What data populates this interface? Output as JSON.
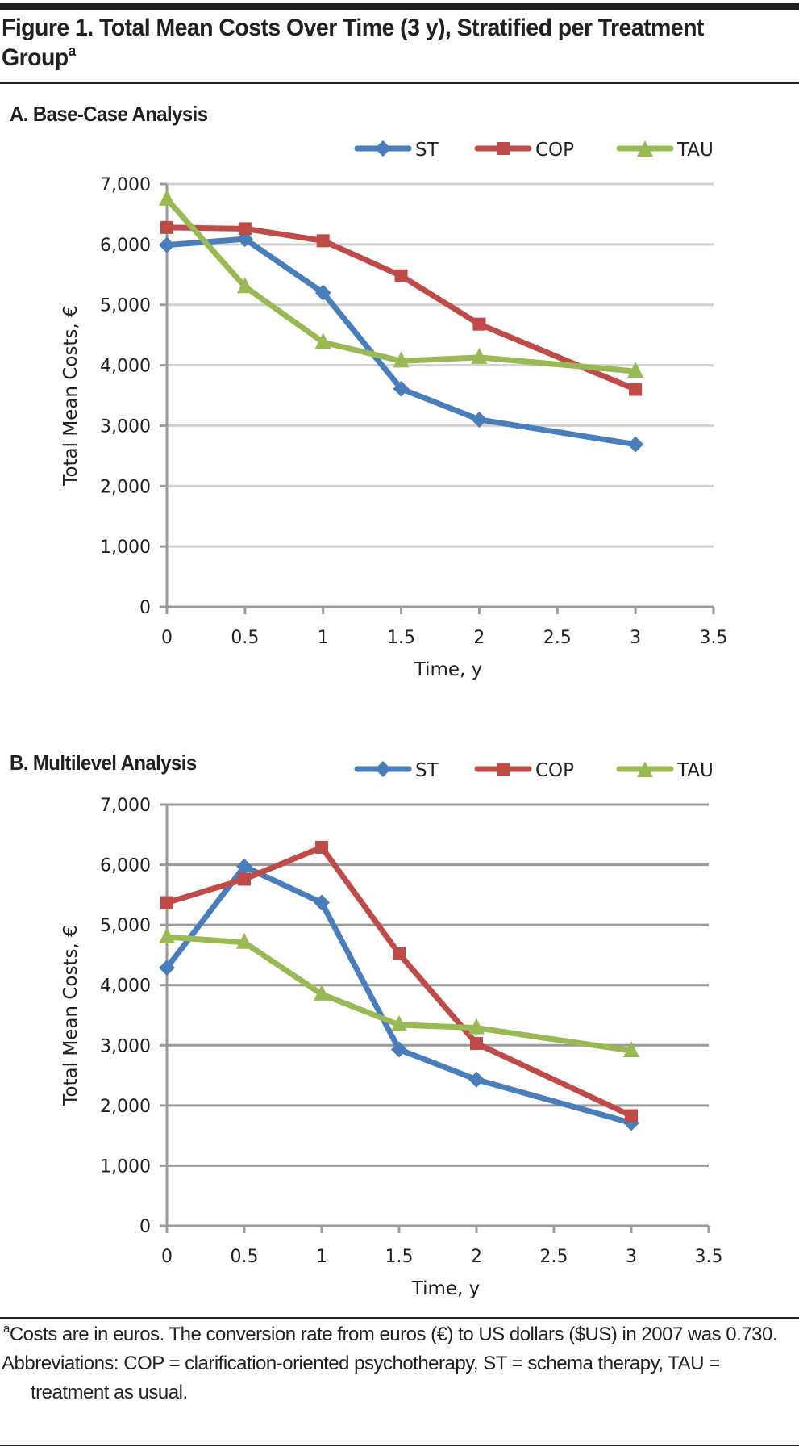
{
  "figure": {
    "title": "Figure 1. Total Mean Costs Over Time (3 y), Stratified per Treatment Group",
    "title_footnote_marker": "a"
  },
  "colors": {
    "ST": "#4a7ebb",
    "COP": "#be4b48",
    "TAU": "#98b954",
    "grid_a": "#d0d0d0",
    "grid_b": "#9a9a9a",
    "axis": "#9a9a9a"
  },
  "chart_data": [
    {
      "type": "line",
      "title": "A. Base-Case Analysis",
      "xlabel": "Time, y",
      "ylabel": "Total Mean Costs, €",
      "xlim": [
        0,
        3.5
      ],
      "ylim": [
        0,
        7000
      ],
      "xticks": [
        "0",
        "0.5",
        "1",
        "1.5",
        "2",
        "2.5",
        "3",
        "3.5"
      ],
      "xtick_values": [
        0,
        0.5,
        1,
        1.5,
        2,
        2.5,
        3,
        3.5
      ],
      "yticks": [
        "0",
        "1,000",
        "2,000",
        "3,000",
        "4,000",
        "5,000",
        "6,000",
        "7,000"
      ],
      "ytick_values": [
        0,
        1000,
        2000,
        3000,
        4000,
        5000,
        6000,
        7000
      ],
      "grid": true,
      "legend_position": "top-right",
      "x": [
        0,
        0.5,
        1,
        1.5,
        2,
        3
      ],
      "series": [
        {
          "name": "ST",
          "marker": "diamond",
          "values": [
            5990,
            6090,
            5200,
            3610,
            3100,
            2690
          ]
        },
        {
          "name": "COP",
          "marker": "square",
          "values": [
            6280,
            6260,
            6060,
            5480,
            4680,
            3600
          ]
        },
        {
          "name": "TAU",
          "marker": "triangle",
          "values": [
            6750,
            5300,
            4380,
            4070,
            4130,
            3900
          ]
        }
      ]
    },
    {
      "type": "line",
      "title": "B. Multilevel Analysis",
      "xlabel": "Time, y",
      "ylabel": "Total Mean Costs, €",
      "xlim": [
        0,
        3.5
      ],
      "ylim": [
        0,
        7000
      ],
      "xticks": [
        "0",
        "0.5",
        "1",
        "1.5",
        "2",
        "2.5",
        "3",
        "3.5"
      ],
      "xtick_values": [
        0,
        0.5,
        1,
        1.5,
        2,
        2.5,
        3,
        3.5
      ],
      "yticks": [
        "0",
        "1,000",
        "2,000",
        "3,000",
        "4,000",
        "5,000",
        "6,000",
        "7,000"
      ],
      "ytick_values": [
        0,
        1000,
        2000,
        3000,
        4000,
        5000,
        6000,
        7000
      ],
      "grid": true,
      "legend_position": "top-right",
      "x": [
        0,
        0.5,
        1,
        1.5,
        2,
        3
      ],
      "series": [
        {
          "name": "ST",
          "marker": "diamond",
          "values": [
            4290,
            5970,
            5370,
            2930,
            2430,
            1710
          ]
        },
        {
          "name": "COP",
          "marker": "square",
          "values": [
            5370,
            5760,
            6290,
            4520,
            3030,
            1830
          ]
        },
        {
          "name": "TAU",
          "marker": "triangle",
          "values": [
            4800,
            4710,
            3850,
            3340,
            3290,
            2910
          ]
        }
      ]
    }
  ],
  "footnotes": {
    "marker": "a",
    "costs_note": "Costs are in euros. The conversion rate from euros (€) to US dollars ($US) in 2007 was 0.730.",
    "abbreviations": "Abbreviations: COP = clarification-oriented psychotherapy, ST = schema therapy, TAU = treatment as usual."
  }
}
